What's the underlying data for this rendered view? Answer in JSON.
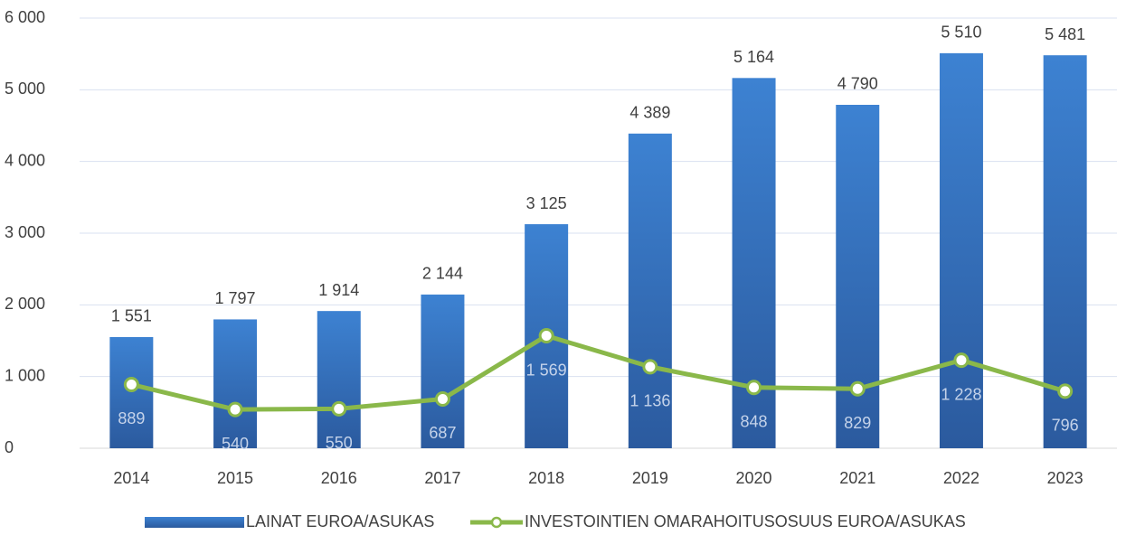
{
  "chart_data": {
    "type": "combo",
    "categories": [
      "2014",
      "2015",
      "2016",
      "2017",
      "2018",
      "2019",
      "2020",
      "2021",
      "2022",
      "2023"
    ],
    "series": [
      {
        "name": "LAINAT EUROA/ASUKAS",
        "type": "bar",
        "color": "#3a78c8",
        "values": [
          1551,
          1797,
          1914,
          2144,
          3125,
          4389,
          5164,
          4790,
          5510,
          5481
        ],
        "value_labels": [
          "1 551",
          "1 797",
          "1 914",
          "2 144",
          "3 125",
          "4 389",
          "5 164",
          "4 790",
          "5 510",
          "5 481"
        ]
      },
      {
        "name": "INVESTOINTIEN OMARAHOITUSOSUUS EUROA/ASUKAS",
        "type": "line",
        "color": "#8ab84a",
        "values": [
          889,
          540,
          550,
          687,
          1569,
          1136,
          848,
          829,
          1228,
          796
        ],
        "value_labels": [
          "889",
          "540",
          "550",
          "687",
          "1 569",
          "1 136",
          "848",
          "829",
          "1 228",
          "796"
        ]
      }
    ],
    "ylim": [
      0,
      6000
    ],
    "yticks": [
      0,
      {
        "value": 1000,
        "label": "1 000"
      },
      {
        "value": 2000,
        "label": "2 000"
      },
      {
        "value": 3000,
        "label": "3 000"
      },
      {
        "value": 4000,
        "label": "4 000"
      },
      {
        "value": 5000,
        "label": "5 000"
      },
      {
        "value": 6000,
        "label": "6 000"
      }
    ],
    "grid": true,
    "legend": "bottom"
  }
}
